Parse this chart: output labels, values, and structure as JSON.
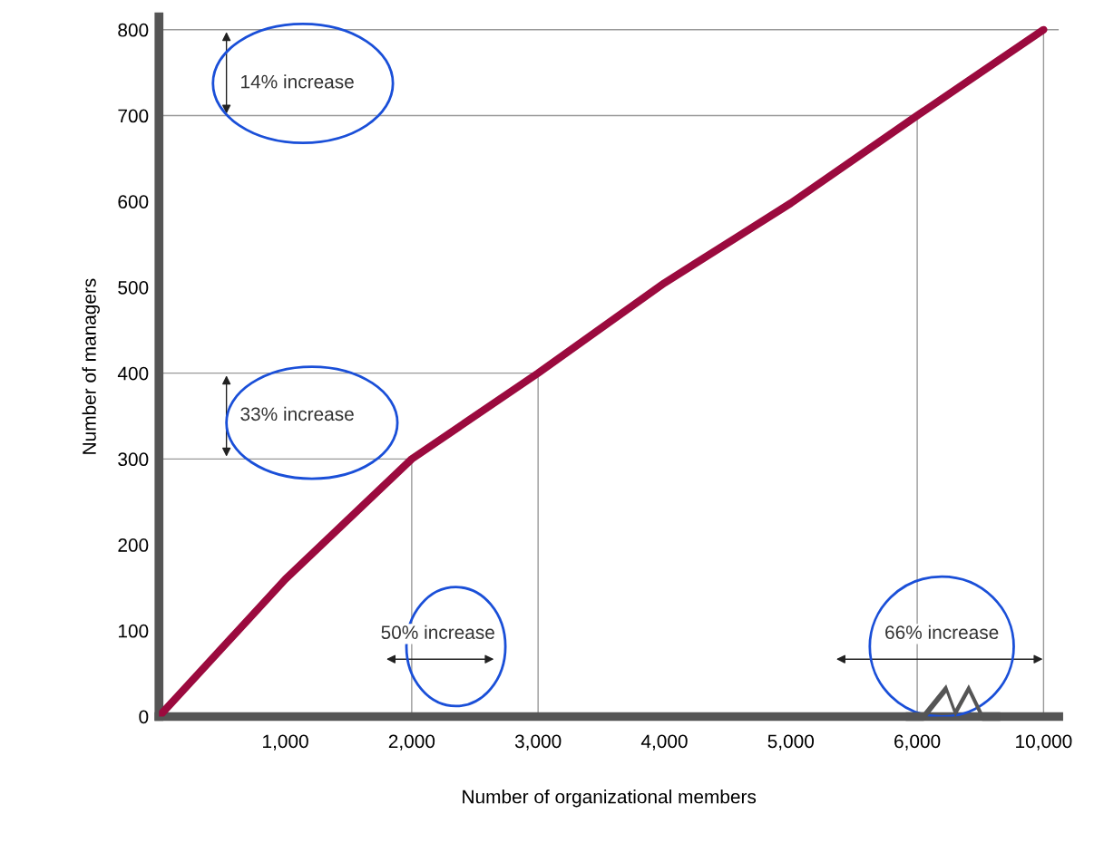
{
  "chart_data": {
    "type": "line",
    "xlabel": "Number of organizational members",
    "ylabel": "Number of managers",
    "categories": [
      null,
      "1,000",
      "2,000",
      "3,000",
      "4,000",
      "5,000",
      "6,000",
      "10,000"
    ],
    "series": [
      {
        "color": "#9b0a3e",
        "values": [
          0,
          160,
          300,
          400,
          505,
          598,
          700,
          800
        ]
      }
    ],
    "ylim": [
      0,
      815
    ],
    "yticks": [
      0,
      100,
      200,
      300,
      400,
      500,
      600,
      700,
      800
    ],
    "ref_lines": [
      {
        "axis": "y",
        "value": 800,
        "color": "#999999"
      },
      {
        "axis": "y",
        "value": 700,
        "color": "#999999"
      },
      {
        "axis": "y",
        "value": 400,
        "color": "#999999"
      },
      {
        "axis": "y",
        "value": 300,
        "color": "#999999"
      },
      {
        "axis": "x",
        "value": "2,000",
        "color": "#999999"
      },
      {
        "axis": "x",
        "value": "3,000",
        "color": "#999999"
      },
      {
        "axis": "x",
        "value": "6,000",
        "color": "#999999"
      },
      {
        "axis": "x",
        "value": "10,000",
        "color": "#999999"
      }
    ],
    "annotations": [
      "14% increase",
      "33% increase",
      "50% increase",
      "66% increase"
    ],
    "grid": false,
    "legend": false,
    "marker": "none",
    "line_style": "solid"
  }
}
